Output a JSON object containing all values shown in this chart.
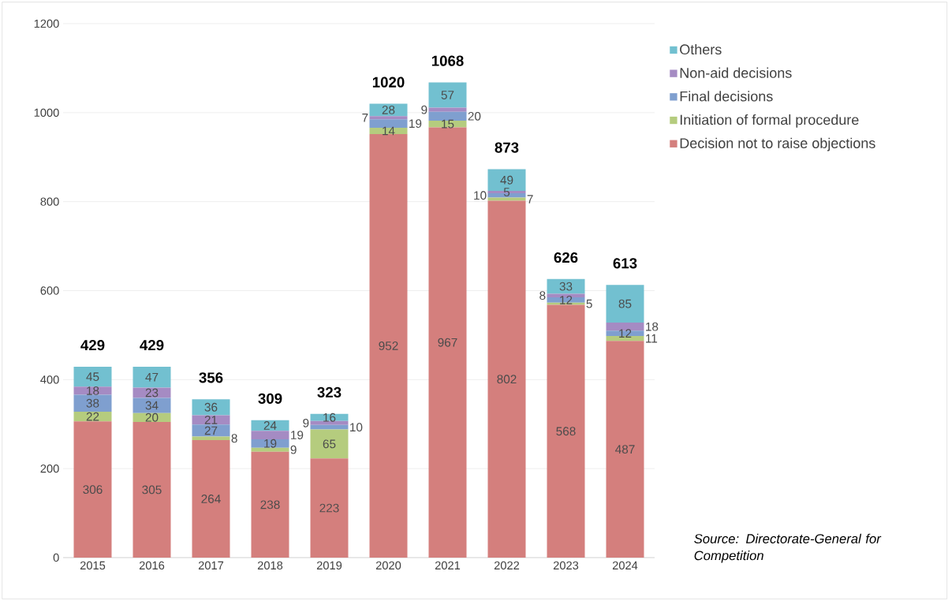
{
  "chart_data": {
    "type": "bar",
    "stacked": true,
    "categories": [
      "2015",
      "2016",
      "2017",
      "2018",
      "2019",
      "2020",
      "2021",
      "2022",
      "2023",
      "2024"
    ],
    "series": [
      {
        "name": "Decision not to raise objections",
        "color": "#d47f7d",
        "values": [
          306,
          305,
          264,
          238,
          223,
          952,
          967,
          802,
          568,
          487
        ]
      },
      {
        "name": "Initiation of formal procedure",
        "color": "#b5cc7e",
        "values": [
          22,
          20,
          8,
          9,
          65,
          14,
          15,
          7,
          5,
          11
        ]
      },
      {
        "name": "Final decisions",
        "color": "#7f9fcf",
        "values": [
          38,
          34,
          27,
          19,
          10,
          19,
          20,
          10,
          12,
          12
        ]
      },
      {
        "name": "Non-aid decisions",
        "color": "#a58bc3",
        "values": [
          18,
          23,
          21,
          19,
          9,
          7,
          9,
          5,
          8,
          18
        ]
      },
      {
        "name": "Others",
        "color": "#72c0d0",
        "values": [
          45,
          47,
          36,
          24,
          16,
          28,
          57,
          49,
          33,
          85
        ]
      }
    ],
    "ylim": [
      0,
      1200
    ],
    "yticks": [
      0,
      200,
      400,
      600,
      800,
      1000,
      1200
    ],
    "grid": "y",
    "legend": "top right",
    "data_labels": true,
    "totals": [
      "429",
      "429",
      "356",
      "309",
      "323",
      "1020",
      "1068",
      "873",
      "626",
      "613"
    ],
    "annotations": [
      "*Source: Directorate-General for Competition*"
    ]
  }
}
